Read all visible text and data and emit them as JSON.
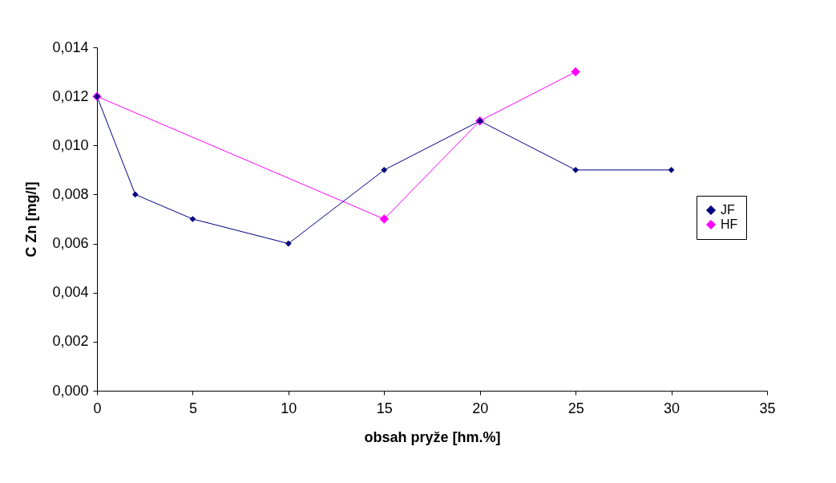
{
  "chart_data": {
    "type": "line",
    "xlabel": "obsah pryže [hm.%]",
    "ylabel": "C Zn [mg/l]",
    "series": [
      {
        "name": "JF",
        "color": "#000080",
        "x": [
          0,
          2,
          5,
          10,
          15,
          20,
          25,
          30
        ],
        "values": [
          0.012,
          0.008,
          0.007,
          0.006,
          0.009,
          0.011,
          0.009,
          0.009
        ]
      },
      {
        "name": "HF",
        "color": "#ff00ff",
        "x": [
          0,
          15,
          20,
          25
        ],
        "values": [
          0.012,
          0.007,
          0.011,
          0.013
        ]
      }
    ],
    "xlim": [
      0,
      35
    ],
    "xticks": [
      0,
      5,
      10,
      15,
      20,
      25,
      30,
      35
    ],
    "ylim": [
      0,
      0.014
    ],
    "yticks": [
      {
        "value": 0,
        "label": "0,000"
      },
      {
        "value": 0.002,
        "label": "0,002"
      },
      {
        "value": 0.004,
        "label": "0,004"
      },
      {
        "value": 0.006,
        "label": "0,006"
      },
      {
        "value": 0.008,
        "label": "0,008"
      },
      {
        "value": 0.01,
        "label": "0,010"
      },
      {
        "value": 0.012,
        "label": "0,012"
      },
      {
        "value": 0.014,
        "label": "0,014"
      }
    ],
    "legend": "right",
    "marker": "diamond",
    "grid": false
  }
}
